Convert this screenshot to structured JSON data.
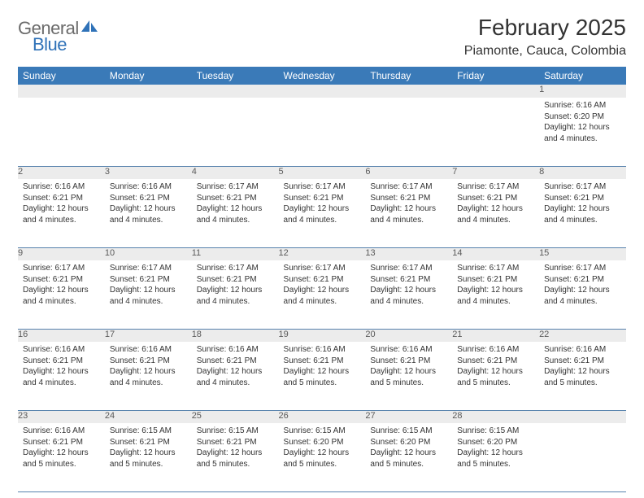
{
  "logo": {
    "general": "General",
    "blue": "Blue"
  },
  "title": "February 2025",
  "location": "Piamonte, Cauca, Colombia",
  "colors": {
    "header_bg": "#3a7ab8",
    "header_text": "#ffffff",
    "daynum_bg": "#ececec",
    "row_border": "#5782ad",
    "logo_gray": "#6b6b6b",
    "logo_blue": "#2f72b8"
  },
  "daysOfWeek": [
    "Sunday",
    "Monday",
    "Tuesday",
    "Wednesday",
    "Thursday",
    "Friday",
    "Saturday"
  ],
  "weeks": [
    [
      {
        "n": "",
        "empty": true
      },
      {
        "n": "",
        "empty": true
      },
      {
        "n": "",
        "empty": true
      },
      {
        "n": "",
        "empty": true
      },
      {
        "n": "",
        "empty": true
      },
      {
        "n": "",
        "empty": true
      },
      {
        "n": "1",
        "sunrise": "6:16 AM",
        "sunset": "6:20 PM",
        "dl": "12 hours and 4 minutes."
      }
    ],
    [
      {
        "n": "2",
        "sunrise": "6:16 AM",
        "sunset": "6:21 PM",
        "dl": "12 hours and 4 minutes."
      },
      {
        "n": "3",
        "sunrise": "6:16 AM",
        "sunset": "6:21 PM",
        "dl": "12 hours and 4 minutes."
      },
      {
        "n": "4",
        "sunrise": "6:17 AM",
        "sunset": "6:21 PM",
        "dl": "12 hours and 4 minutes."
      },
      {
        "n": "5",
        "sunrise": "6:17 AM",
        "sunset": "6:21 PM",
        "dl": "12 hours and 4 minutes."
      },
      {
        "n": "6",
        "sunrise": "6:17 AM",
        "sunset": "6:21 PM",
        "dl": "12 hours and 4 minutes."
      },
      {
        "n": "7",
        "sunrise": "6:17 AM",
        "sunset": "6:21 PM",
        "dl": "12 hours and 4 minutes."
      },
      {
        "n": "8",
        "sunrise": "6:17 AM",
        "sunset": "6:21 PM",
        "dl": "12 hours and 4 minutes."
      }
    ],
    [
      {
        "n": "9",
        "sunrise": "6:17 AM",
        "sunset": "6:21 PM",
        "dl": "12 hours and 4 minutes."
      },
      {
        "n": "10",
        "sunrise": "6:17 AM",
        "sunset": "6:21 PM",
        "dl": "12 hours and 4 minutes."
      },
      {
        "n": "11",
        "sunrise": "6:17 AM",
        "sunset": "6:21 PM",
        "dl": "12 hours and 4 minutes."
      },
      {
        "n": "12",
        "sunrise": "6:17 AM",
        "sunset": "6:21 PM",
        "dl": "12 hours and 4 minutes."
      },
      {
        "n": "13",
        "sunrise": "6:17 AM",
        "sunset": "6:21 PM",
        "dl": "12 hours and 4 minutes."
      },
      {
        "n": "14",
        "sunrise": "6:17 AM",
        "sunset": "6:21 PM",
        "dl": "12 hours and 4 minutes."
      },
      {
        "n": "15",
        "sunrise": "6:17 AM",
        "sunset": "6:21 PM",
        "dl": "12 hours and 4 minutes."
      }
    ],
    [
      {
        "n": "16",
        "sunrise": "6:16 AM",
        "sunset": "6:21 PM",
        "dl": "12 hours and 4 minutes."
      },
      {
        "n": "17",
        "sunrise": "6:16 AM",
        "sunset": "6:21 PM",
        "dl": "12 hours and 4 minutes."
      },
      {
        "n": "18",
        "sunrise": "6:16 AM",
        "sunset": "6:21 PM",
        "dl": "12 hours and 4 minutes."
      },
      {
        "n": "19",
        "sunrise": "6:16 AM",
        "sunset": "6:21 PM",
        "dl": "12 hours and 5 minutes."
      },
      {
        "n": "20",
        "sunrise": "6:16 AM",
        "sunset": "6:21 PM",
        "dl": "12 hours and 5 minutes."
      },
      {
        "n": "21",
        "sunrise": "6:16 AM",
        "sunset": "6:21 PM",
        "dl": "12 hours and 5 minutes."
      },
      {
        "n": "22",
        "sunrise": "6:16 AM",
        "sunset": "6:21 PM",
        "dl": "12 hours and 5 minutes."
      }
    ],
    [
      {
        "n": "23",
        "sunrise": "6:16 AM",
        "sunset": "6:21 PM",
        "dl": "12 hours and 5 minutes."
      },
      {
        "n": "24",
        "sunrise": "6:15 AM",
        "sunset": "6:21 PM",
        "dl": "12 hours and 5 minutes."
      },
      {
        "n": "25",
        "sunrise": "6:15 AM",
        "sunset": "6:21 PM",
        "dl": "12 hours and 5 minutes."
      },
      {
        "n": "26",
        "sunrise": "6:15 AM",
        "sunset": "6:20 PM",
        "dl": "12 hours and 5 minutes."
      },
      {
        "n": "27",
        "sunrise": "6:15 AM",
        "sunset": "6:20 PM",
        "dl": "12 hours and 5 minutes."
      },
      {
        "n": "28",
        "sunrise": "6:15 AM",
        "sunset": "6:20 PM",
        "dl": "12 hours and 5 minutes."
      },
      {
        "n": "",
        "empty": true
      }
    ]
  ]
}
